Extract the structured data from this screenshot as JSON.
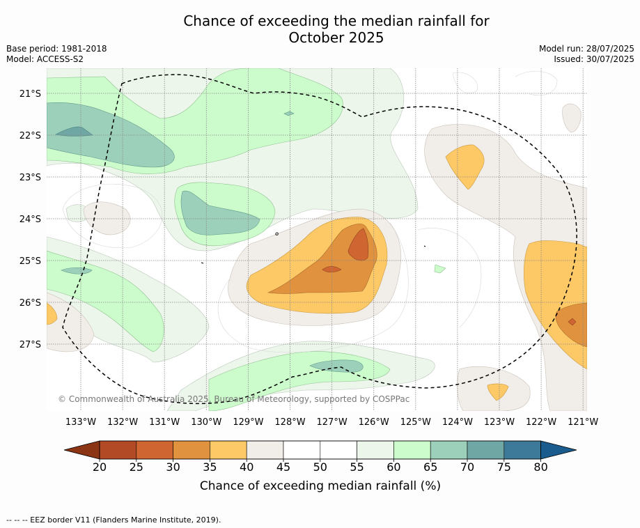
{
  "title": {
    "line1": "Chance of exceeding the median rainfall for",
    "line2": "October 2025"
  },
  "meta": {
    "base_period": "Base period: 1981-2018",
    "model": "Model: ACCESS-S2",
    "model_run": "Model run: 28/07/2025",
    "issued": "Issued: 30/07/2025"
  },
  "map": {
    "lat_labels": [
      "21°S",
      "22°S",
      "23°S",
      "24°S",
      "25°S",
      "26°S",
      "27°S"
    ],
    "lon_labels": [
      "133°W",
      "132°W",
      "131°W",
      "130°W",
      "129°W",
      "128°W",
      "127°W",
      "126°W",
      "125°W",
      "124°W",
      "123°W",
      "122°W",
      "121°W"
    ],
    "copyright": "© Commonwealth of Australia 2025, Bureau of Meteorology, supported by COSPPac"
  },
  "colorbar": {
    "ticks": [
      "20",
      "25",
      "30",
      "35",
      "40",
      "45",
      "50",
      "55",
      "60",
      "65",
      "70",
      "75",
      "80"
    ],
    "label": "Chance of exceeding median rainfall (%)",
    "colors": [
      "#b24a26",
      "#cf6530",
      "#e0923f",
      "#fdc866",
      "#f1ede8",
      "#ffffff",
      "#ffffff",
      "#ecf6ea",
      "#ccfccc",
      "#9dd0bb",
      "#6fa7a5",
      "#3d7a9a"
    ],
    "under_color": "#8b3515",
    "over_color": "#1b5c8e"
  },
  "footer": "--  --  -- EEZ border V11 (Flanders Marine Institute, 2019)."
}
